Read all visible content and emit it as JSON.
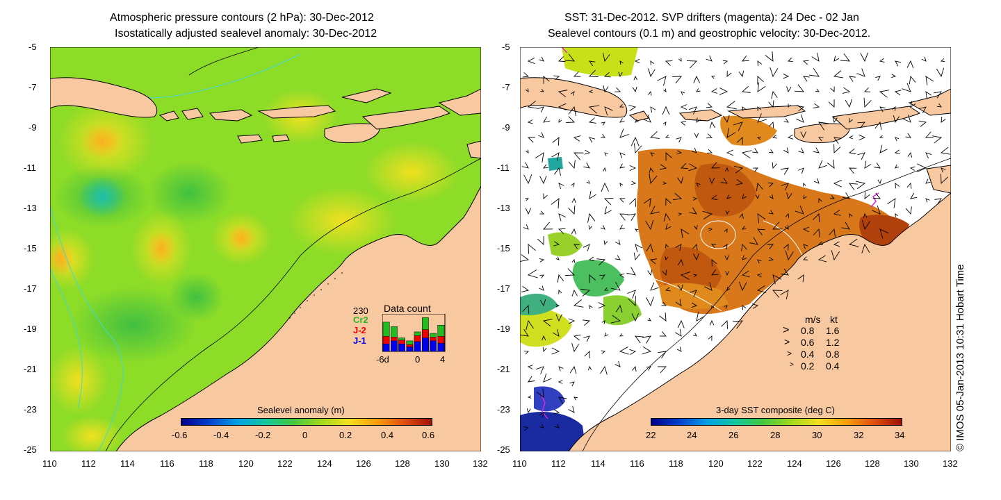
{
  "left_panel": {
    "title_line1": "Atmospheric pressure contours (2 hPa): 30-Dec-2012",
    "title_line2": "Isostatically adjusted sealevel anomaly: 30-Dec-2012",
    "colorbar_label": "Sealevel anomaly (m)",
    "colorbar_ticks": [
      "-0.6",
      "-0.4",
      "-0.2",
      "0",
      "0.2",
      "0.4",
      "0.6"
    ],
    "data_count": {
      "title": "Data count",
      "max_label": "230",
      "legend": [
        {
          "name": "Cr2",
          "color": "#22bb22"
        },
        {
          "name": "J-2",
          "color": "#ee0000"
        },
        {
          "name": "J-1",
          "color": "#0000ee"
        }
      ],
      "x_ticks": [
        "-6d",
        "0",
        "4"
      ],
      "bars": [
        {
          "total": 0.78,
          "j2": 0.4,
          "j1": 0.2
        },
        {
          "total": 0.66,
          "j2": 0.38,
          "j1": 0.28
        },
        {
          "total": 0.36,
          "j2": 0.3,
          "j1": 0.2
        },
        {
          "total": 0.28,
          "j2": 0.18,
          "j1": 0.12
        },
        {
          "total": 0.52,
          "j2": 0.42,
          "j1": 0.26
        },
        {
          "total": 0.9,
          "j2": 0.58,
          "j1": 0.36
        },
        {
          "total": 0.48,
          "j2": 0.38,
          "j1": 0.28
        },
        {
          "total": 0.7,
          "j2": 0.4,
          "j1": 0.22
        }
      ]
    }
  },
  "right_panel": {
    "title_line1": "SST: 31-Dec-2012. SVP drifters (magenta): 24 Dec - 02 Jan",
    "title_line2": "Sealevel contours (0.1 m) and geostrophic velocity: 30-Dec-2012.",
    "colorbar_label": "3-day SST composite (deg C)",
    "colorbar_ticks": [
      "22",
      "24",
      "26",
      "28",
      "30",
      "32",
      "34"
    ],
    "speed_legend": {
      "header_ms": "m/s",
      "header_kt": "kt",
      "rows": [
        {
          "ms": "0.8",
          "kt": "1.6"
        },
        {
          "ms": "0.6",
          "kt": "1.2"
        },
        {
          "ms": "0.4",
          "kt": "0.8"
        },
        {
          "ms": "0.2",
          "kt": "0.4"
        }
      ]
    }
  },
  "axes": {
    "y_ticks": [
      "-5",
      "-7",
      "-9",
      "-11",
      "-13",
      "-15",
      "-17",
      "-19",
      "-21",
      "-23",
      "-25"
    ],
    "x_ticks": [
      "110",
      "112",
      "114",
      "116",
      "118",
      "120",
      "122",
      "124",
      "126",
      "128",
      "130",
      "132"
    ],
    "lat_range": [
      -25,
      -5
    ],
    "lon_range": [
      110,
      132
    ]
  },
  "credit": "© IMOS 05-Jan-2013 10:31 Hobart Time",
  "colors": {
    "land": "#f8c8a0",
    "ocean_sla_base": "#88dd22",
    "sst_base": "#d06a10"
  }
}
